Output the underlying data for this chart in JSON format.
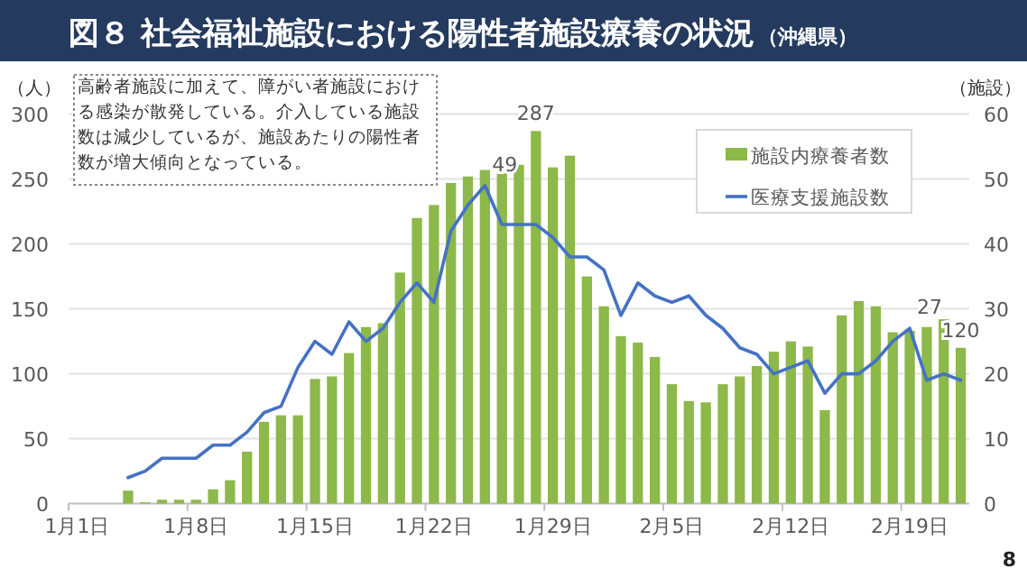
{
  "chart_data": {
    "type": "bar",
    "title": "図８ 社会福祉施設における陽性者施設療養の状況",
    "subtitle": "（沖縄県）",
    "ylabel": "（人）",
    "y2label": "（施設）",
    "annotations": [
      "高齢者施設に加えて、障がい者施設における感染が散発している。介入している施設数は減少しているが、施設あたりの陽性者数が増大傾向となっている。",
      "8"
    ],
    "categories": [
      "1月1日",
      null,
      null,
      null,
      null,
      null,
      null,
      "1月8日",
      null,
      null,
      null,
      null,
      null,
      null,
      "1月15日",
      null,
      null,
      null,
      null,
      null,
      null,
      "1月22日",
      null,
      null,
      null,
      null,
      null,
      null,
      "1月29日",
      null,
      null,
      null,
      null,
      null,
      null,
      "2月5日",
      null,
      null,
      null,
      null,
      null,
      null,
      "2月12日",
      null,
      null,
      null,
      null,
      null,
      null,
      "2月19日",
      null,
      null,
      null
    ],
    "series": [
      {
        "name": "施設内療養者数",
        "color": "#8db84a",
        "values": [
          null,
          null,
          null,
          10,
          1,
          3,
          3,
          3,
          11,
          18,
          40,
          63,
          68,
          68,
          96,
          98,
          116,
          136,
          139,
          178,
          220,
          230,
          247,
          252,
          257,
          261,
          261,
          287,
          259,
          268,
          175,
          152,
          129,
          124,
          113,
          92,
          79,
          78,
          92,
          98,
          106,
          117,
          125,
          121,
          72,
          145,
          156,
          152,
          132,
          133,
          136,
          142,
          120
        ],
        "value_labels": [
          null,
          null,
          null,
          null,
          null,
          null,
          null,
          null,
          null,
          null,
          null,
          null,
          null,
          null,
          null,
          null,
          null,
          null,
          null,
          null,
          null,
          null,
          null,
          null,
          null,
          null,
          null,
          "287",
          null,
          null,
          null,
          null,
          null,
          null,
          null,
          null,
          null,
          null,
          null,
          null,
          null,
          null,
          null,
          null,
          null,
          null,
          null,
          null,
          null,
          null,
          null,
          null,
          "120"
        ]
      },
      {
        "name": "医療支援施設数",
        "type": "line",
        "axis": "y2",
        "color": "#4472c4",
        "values": [
          null,
          null,
          null,
          4,
          5,
          7,
          7,
          7,
          9,
          9,
          11,
          14,
          15,
          21,
          25,
          23,
          28,
          25,
          27,
          31,
          34,
          31,
          42,
          46,
          49,
          43,
          43,
          43,
          41,
          38,
          38,
          36,
          29,
          34,
          32,
          31,
          32,
          29,
          27,
          24,
          23,
          20,
          21,
          22,
          17,
          20,
          20,
          22,
          25,
          27,
          19,
          20,
          19
        ],
        "value_labels": [
          null,
          null,
          null,
          null,
          null,
          null,
          null,
          null,
          null,
          null,
          null,
          null,
          null,
          null,
          null,
          null,
          null,
          null,
          null,
          null,
          null,
          null,
          null,
          null,
          "49",
          null,
          null,
          null,
          null,
          null,
          null,
          null,
          null,
          null,
          null,
          null,
          null,
          null,
          null,
          null,
          null,
          null,
          null,
          null,
          null,
          null,
          null,
          null,
          null,
          "27",
          null,
          null,
          null
        ]
      }
    ],
    "ylim": [
      0,
      300
    ],
    "yticks": [
      0,
      50,
      100,
      150,
      200,
      250,
      300
    ],
    "y2lim": [
      0,
      60
    ],
    "y2ticks": [
      0,
      10,
      20,
      30,
      40,
      50,
      60
    ],
    "grid": "y",
    "legend": "top right"
  }
}
